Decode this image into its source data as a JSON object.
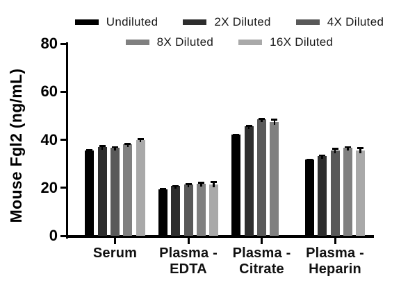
{
  "chart_data": {
    "type": "bar",
    "title": "",
    "xlabel": "",
    "ylabel": "Mouse Fgl2 (ng/mL)",
    "ylim": [
      0,
      80
    ],
    "yticks": [
      0,
      20,
      40,
      60,
      80
    ],
    "grid": false,
    "legend_position": "top",
    "legend_rows": [
      [
        0,
        1,
        2
      ],
      [
        3,
        4
      ]
    ],
    "categories": [
      "Serum",
      "Plasma -\nEDTA",
      "Plasma -\nCitrate",
      "Plasma -\nHeparin"
    ],
    "series": [
      {
        "name": "Undiluted",
        "color": "#000000",
        "values": [
          35.5,
          19.4,
          42.2,
          31.9
        ],
        "errors": [
          0.6,
          0.5,
          0.3,
          0.3
        ]
      },
      {
        "name": "2X Diluted",
        "color": "#2e2e2e",
        "values": [
          37.0,
          20.7,
          45.5,
          33.3
        ],
        "errors": [
          0.8,
          0.5,
          0.7,
          0.6
        ]
      },
      {
        "name": "4X Diluted",
        "color": "#595959",
        "values": [
          36.6,
          21.3,
          48.6,
          35.5
        ],
        "errors": [
          0.8,
          0.6,
          0.4,
          1.1
        ]
      },
      {
        "name": "8X Diluted",
        "color": "#808080",
        "values": [
          38.0,
          21.8,
          47.4,
          36.7
        ],
        "errors": [
          0.6,
          0.7,
          1.3,
          0.6
        ]
      },
      {
        "name": "16X Diluted",
        "color": "#a9a9a9",
        "values": [
          40.0,
          21.3,
          null,
          35.5
        ],
        "errors": [
          0.6,
          1.5,
          null,
          1.4
        ]
      }
    ],
    "note_missing_bar": "Plasma - Citrate has no 16X Diluted bar"
  },
  "colors": {
    "axis": "#000000",
    "background": "#ffffff"
  }
}
